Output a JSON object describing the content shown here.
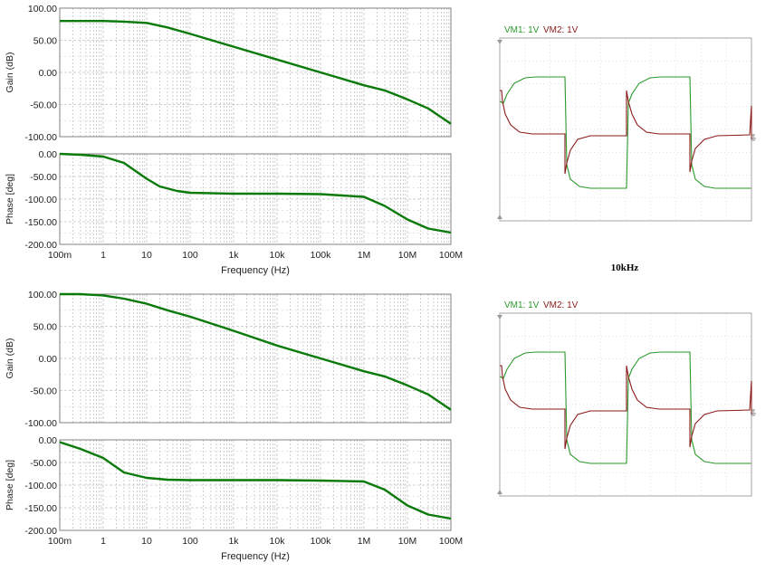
{
  "bode_common": {
    "xlabel": "Frequency (Hz)",
    "x_tick_labels": [
      "100m",
      "1",
      "10",
      "100",
      "1k",
      "10k",
      "100k",
      "1M",
      "10M",
      "100M"
    ],
    "x_range_hz": [
      0.1,
      100000000
    ],
    "x_scale": "log",
    "gain_ylabel": "Gain (dB)",
    "gain_tick_labels": [
      "100.00",
      "50.00",
      "0.00",
      "-50.00",
      "-100.00"
    ],
    "gain_range": [
      -100,
      100
    ],
    "phase_ylabel": "Phase [deg]",
    "phase_tick_labels": [
      "0.00",
      "-50.00",
      "-100.00",
      "-150.00",
      "-200.00"
    ],
    "phase_range": [
      -200,
      0
    ],
    "grid": "dashed",
    "trace_color": "#0a7a0a"
  },
  "scope_common": {
    "legend_vm1": "VM1: 1V",
    "legend_vm2": "VM2: 1V",
    "vm1_color": "#2a9a2a",
    "vm2_color": "#8b1a1a",
    "frame_color": "#a6a6a6",
    "grid_color": "#c8c8c8"
  },
  "scope_title": "10kHz",
  "chart_data": [
    {
      "type": "line",
      "name": "Gain panel 1",
      "ylabel": "Gain (dB)",
      "xlabel": "Frequency (Hz)",
      "x_scale": "log",
      "ylim": [
        -100,
        100
      ],
      "x": [
        0.1,
        0.3,
        1,
        3,
        10,
        30,
        100,
        1000,
        10000,
        100000,
        1000000,
        3000000,
        10000000,
        30000000,
        100000000
      ],
      "values": [
        80,
        80,
        80,
        79,
        77,
        70,
        60,
        40,
        20,
        0,
        -20,
        -28,
        -42,
        -56,
        -80
      ]
    },
    {
      "type": "line",
      "name": "Phase panel 1",
      "ylabel": "Phase [deg]",
      "xlabel": "Frequency (Hz)",
      "x_scale": "log",
      "ylim": [
        -200,
        0
      ],
      "x": [
        0.1,
        0.3,
        1,
        3,
        10,
        20,
        50,
        100,
        1000,
        10000,
        100000,
        1000000,
        3000000,
        10000000,
        30000000,
        100000000
      ],
      "values": [
        0,
        -2,
        -6,
        -20,
        -55,
        -72,
        -82,
        -86,
        -88,
        -88,
        -89,
        -95,
        -115,
        -145,
        -165,
        -174
      ]
    },
    {
      "type": "line",
      "name": "Gain panel 2",
      "ylabel": "Gain (dB)",
      "xlabel": "Frequency (Hz)",
      "x_scale": "log",
      "ylim": [
        -100,
        100
      ],
      "x": [
        0.1,
        0.3,
        1,
        3,
        10,
        30,
        100,
        1000,
        10000,
        100000,
        1000000,
        3000000,
        10000000,
        30000000,
        100000000
      ],
      "values": [
        100,
        100,
        98,
        93,
        85,
        75,
        65,
        43,
        20,
        0,
        -20,
        -28,
        -42,
        -56,
        -80
      ]
    },
    {
      "type": "line",
      "name": "Phase panel 2",
      "ylabel": "Phase [deg]",
      "xlabel": "Frequency (Hz)",
      "x_scale": "log",
      "ylim": [
        -200,
        0
      ],
      "x": [
        0.1,
        0.3,
        1,
        3,
        10,
        30,
        100,
        1000,
        10000,
        100000,
        1000000,
        3000000,
        10000000,
        30000000,
        100000000
      ],
      "values": [
        -5,
        -20,
        -40,
        -72,
        -84,
        -88,
        -89,
        -89,
        -89,
        -90,
        -92,
        -110,
        -145,
        -165,
        -174
      ]
    }
  ]
}
